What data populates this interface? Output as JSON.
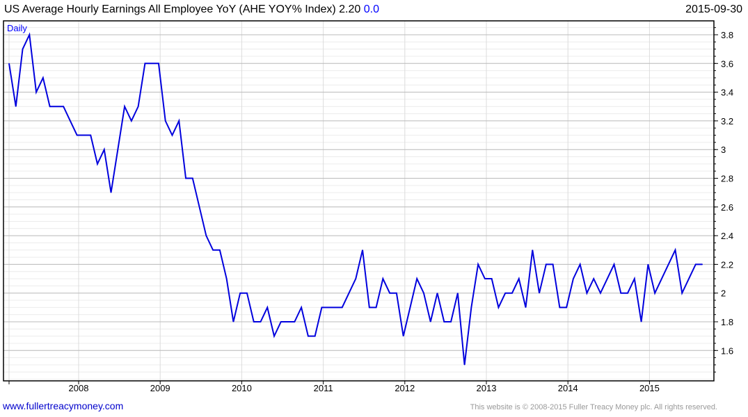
{
  "header": {
    "title": "US Average Hourly Earnings All Employee YoY (AHE YOY% Index)",
    "last_value": "2.20",
    "change": "0.0",
    "date": "2015-09-30"
  },
  "footer": {
    "link": "www.fullertreacymoney.com",
    "copyright": "This website is © 2008-2015 Fuller Treacy Money plc. All rights reserved."
  },
  "chart_data": {
    "type": "line",
    "title": "US Average Hourly Earnings All Employee YoY (AHE YOY% Index)",
    "periodicity_label": "Daily",
    "x_start": "2007-03",
    "x_step": "month",
    "line_color": "#0000dd",
    "yticks": [
      "1.6",
      "1.8",
      "2",
      "2.2",
      "2.4",
      "2.6",
      "2.8",
      "3",
      "3.2",
      "3.4",
      "3.6",
      "3.8"
    ],
    "xticks": [
      "2008",
      "2009",
      "2010",
      "2011",
      "2012",
      "2013",
      "2014",
      "2015"
    ],
    "ylim": [
      1.39,
      3.9
    ],
    "grid": true,
    "values": [
      3.6,
      3.3,
      3.7,
      3.8,
      3.4,
      3.5,
      3.3,
      3.3,
      3.3,
      3.2,
      3.1,
      3.1,
      3.1,
      2.9,
      3.0,
      2.7,
      3.0,
      3.3,
      3.2,
      3.3,
      3.6,
      3.6,
      3.6,
      3.2,
      3.1,
      3.2,
      2.8,
      2.8,
      2.6,
      2.4,
      2.3,
      2.3,
      2.1,
      1.8,
      2.0,
      2.0,
      1.8,
      1.8,
      1.9,
      1.7,
      1.8,
      1.8,
      1.8,
      1.9,
      1.7,
      1.7,
      1.9,
      1.9,
      1.9,
      1.9,
      2.0,
      2.1,
      2.3,
      1.9,
      1.9,
      2.1,
      2.0,
      2.0,
      1.7,
      1.9,
      2.1,
      2.0,
      1.8,
      2.0,
      1.8,
      1.8,
      2.0,
      1.5,
      1.9,
      2.2,
      2.1,
      2.1,
      1.9,
      2.0,
      2.0,
      2.1,
      1.9,
      2.3,
      2.0,
      2.2,
      2.2,
      1.9,
      1.9,
      2.1,
      2.2,
      2.0,
      2.1,
      2.0,
      2.1,
      2.2,
      2.0,
      2.0,
      2.1,
      1.8,
      2.2,
      2.0,
      2.1,
      2.2,
      2.3,
      2.0,
      2.1,
      2.2,
      2.2
    ]
  }
}
